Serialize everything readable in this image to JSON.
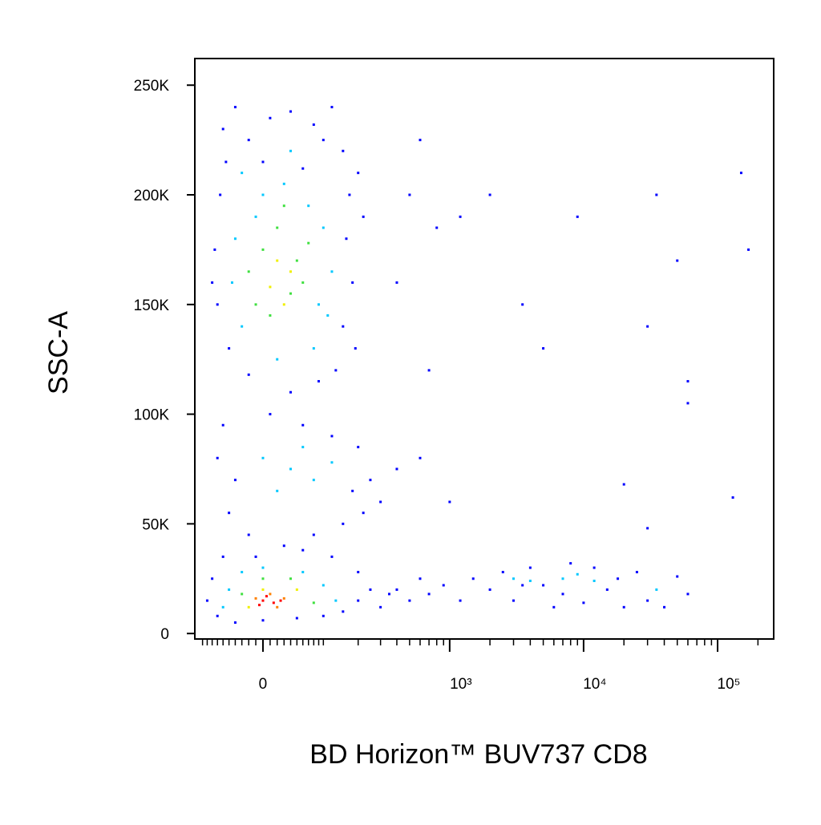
{
  "chart_data": {
    "type": "scatter",
    "x_label": "BD Horizon™ BUV737 CD8",
    "y_label": "SSC-A",
    "xscale": "biexponential",
    "xlim": [
      -118,
      262143
    ],
    "ylim": [
      -2500,
      262144
    ],
    "xticks": [
      0,
      {
        "value": 1000,
        "label": "10³"
      },
      {
        "value": 10000,
        "label": "10⁴"
      },
      {
        "value": 100000,
        "label": "10⁵"
      }
    ],
    "xminorticks": [
      -100,
      -90,
      -80,
      -70,
      -60,
      -50,
      -40,
      -30,
      -20,
      -10,
      10,
      20,
      30,
      40,
      50,
      60,
      70,
      80,
      90,
      100,
      200,
      300,
      400,
      500,
      600,
      700,
      800,
      900,
      2000,
      3000,
      4000,
      5000,
      6000,
      7000,
      8000,
      9000,
      20000,
      30000,
      40000,
      50000,
      60000,
      70000,
      80000,
      90000,
      200000
    ],
    "yticks": [
      0,
      {
        "value": 50000,
        "label": "50K"
      },
      {
        "value": 100000,
        "label": "100K"
      },
      {
        "value": 150000,
        "label": "150K"
      },
      {
        "value": 200000,
        "label": "200K"
      },
      {
        "value": 250000,
        "label": "250K"
      }
    ],
    "series": [
      {
        "color": "#0000ff",
        "x": [
          -60,
          -40,
          -20,
          10,
          40,
          80,
          120,
          150,
          170,
          160,
          180,
          150,
          130,
          90,
          40,
          -20,
          -50,
          -70,
          -75,
          -65,
          -55,
          200,
          220,
          190,
          -80,
          100,
          0,
          60,
          -60,
          -40,
          -50,
          -20,
          10,
          60,
          120,
          200,
          250,
          300,
          220,
          150,
          80,
          30,
          180,
          -70,
          400,
          -90,
          -80,
          -70,
          -40,
          0,
          50,
          100,
          150,
          200,
          250,
          200,
          120,
          60,
          -10,
          -60,
          300,
          350,
          400,
          500,
          600,
          700,
          900,
          1200,
          1500,
          2000,
          2500,
          3000,
          4000,
          5000,
          6000,
          8000,
          10000,
          12000,
          15000,
          20000,
          25000,
          30000,
          40000,
          50000,
          60000,
          3500,
          7000,
          18000,
          500,
          800,
          1200,
          2000,
          3500,
          5000,
          9000,
          35000,
          30000,
          50000,
          60000,
          150000,
          170000,
          1000,
          20000,
          130000,
          600,
          400,
          700,
          600,
          60000,
          30000
        ],
        "y": [
          230000,
          240000,
          225000,
          235000,
          238000,
          232000,
          240000,
          220000,
          200000,
          180000,
          160000,
          140000,
          120000,
          115000,
          110000,
          118000,
          130000,
          150000,
          175000,
          200000,
          215000,
          210000,
          190000,
          130000,
          160000,
          225000,
          215000,
          212000,
          95000,
          70000,
          55000,
          45000,
          100000,
          95000,
          90000,
          85000,
          70000,
          60000,
          55000,
          50000,
          45000,
          40000,
          65000,
          80000,
          75000,
          15000,
          25000,
          8000,
          5000,
          6000,
          7000,
          8000,
          10000,
          15000,
          20000,
          28000,
          35000,
          38000,
          35000,
          35000,
          12000,
          18000,
          20000,
          15000,
          25000,
          18000,
          22000,
          15000,
          25000,
          20000,
          28000,
          15000,
          30000,
          22000,
          12000,
          32000,
          14000,
          30000,
          20000,
          12000,
          28000,
          15000,
          12000,
          26000,
          18000,
          22000,
          18000,
          25000,
          200000,
          185000,
          190000,
          200000,
          150000,
          130000,
          190000,
          200000,
          140000,
          170000,
          105000,
          210000,
          175000,
          60000,
          68000,
          62000,
          225000,
          160000,
          120000,
          80000,
          115000,
          48000
        ]
      },
      {
        "color": "#00c8ff",
        "x": [
          -30,
          0,
          30,
          70,
          100,
          -40,
          120,
          -45,
          110,
          -30,
          80,
          20,
          40,
          -10,
          90,
          0,
          40,
          80,
          120,
          60,
          20,
          -50,
          -30,
          0,
          60,
          100,
          130,
          -60,
          7000,
          9000,
          12000,
          4000,
          35000,
          3000
        ],
        "y": [
          210000,
          200000,
          205000,
          195000,
          185000,
          180000,
          165000,
          160000,
          145000,
          140000,
          130000,
          125000,
          220000,
          190000,
          150000,
          80000,
          75000,
          70000,
          78000,
          85000,
          65000,
          20000,
          28000,
          30000,
          28000,
          22000,
          15000,
          12000,
          25000,
          27000,
          24000,
          24000,
          20000,
          25000
        ]
      },
      {
        "color": "#40e040",
        "x": [
          0,
          20,
          50,
          -20,
          40,
          10,
          60,
          -10,
          30,
          70,
          0,
          40,
          -30,
          80
        ],
        "y": [
          175000,
          185000,
          170000,
          165000,
          155000,
          145000,
          160000,
          150000,
          195000,
          178000,
          25000,
          25000,
          18000,
          14000
        ]
      },
      {
        "color": "#f0f000",
        "x": [
          20,
          40,
          10,
          30,
          0,
          50,
          -20
        ],
        "y": [
          170000,
          165000,
          158000,
          150000,
          20000,
          20000,
          12000
        ]
      },
      {
        "color": "#ff8000",
        "x": [
          10,
          30,
          -10,
          20
        ],
        "y": [
          18000,
          16000,
          16000,
          12000
        ]
      },
      {
        "color": "#ff0000",
        "x": [
          0,
          15,
          -5,
          25,
          5
        ],
        "y": [
          15000,
          14000,
          13000,
          15000,
          17000
        ]
      }
    ]
  }
}
